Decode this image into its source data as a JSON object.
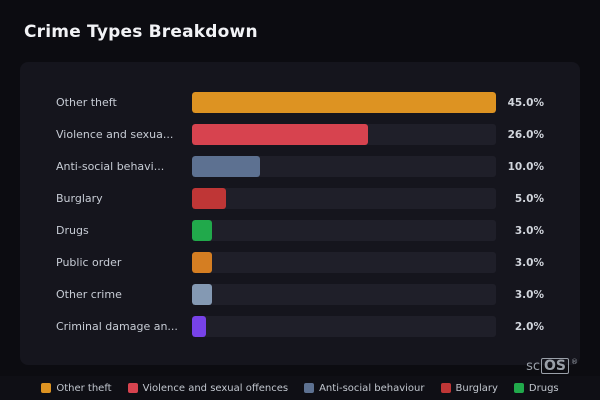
{
  "header": {
    "title": "Crime Types Breakdown"
  },
  "brand": {
    "prefix": "sc",
    "box": "OS",
    "reg": "®"
  },
  "chart_data": {
    "type": "bar",
    "orientation": "horizontal",
    "title": "Crime Types Breakdown",
    "categories": [
      "Other theft",
      "Violence and sexua...",
      "Anti-social behavi...",
      "Burglary",
      "Drugs",
      "Public order",
      "Other crime",
      "Criminal damage an..."
    ],
    "values": [
      45.0,
      26.0,
      10.0,
      5.0,
      3.0,
      3.0,
      3.0,
      2.0
    ],
    "value_labels": [
      "45.0%",
      "26.0%",
      "10.0%",
      "5.0%",
      "3.0%",
      "3.0%",
      "3.0%",
      "2.0%"
    ],
    "bar_colors": [
      "#dd9322",
      "#d7434f",
      "#5d7191",
      "#bf3636",
      "#21a94b",
      "#d57e22",
      "#8499b3",
      "#7742e8"
    ],
    "max_value": 45.0,
    "track_color": "#1f1f29",
    "legend_position": "bottom",
    "legend": [
      {
        "label": "Other theft",
        "color": "#dd9322"
      },
      {
        "label": "Violence and sexual offences",
        "color": "#d7434f"
      },
      {
        "label": "Anti-social behaviour",
        "color": "#5d7191"
      },
      {
        "label": "Burglary",
        "color": "#bf3636"
      },
      {
        "label": "Drugs",
        "color": "#21a94b"
      }
    ]
  }
}
